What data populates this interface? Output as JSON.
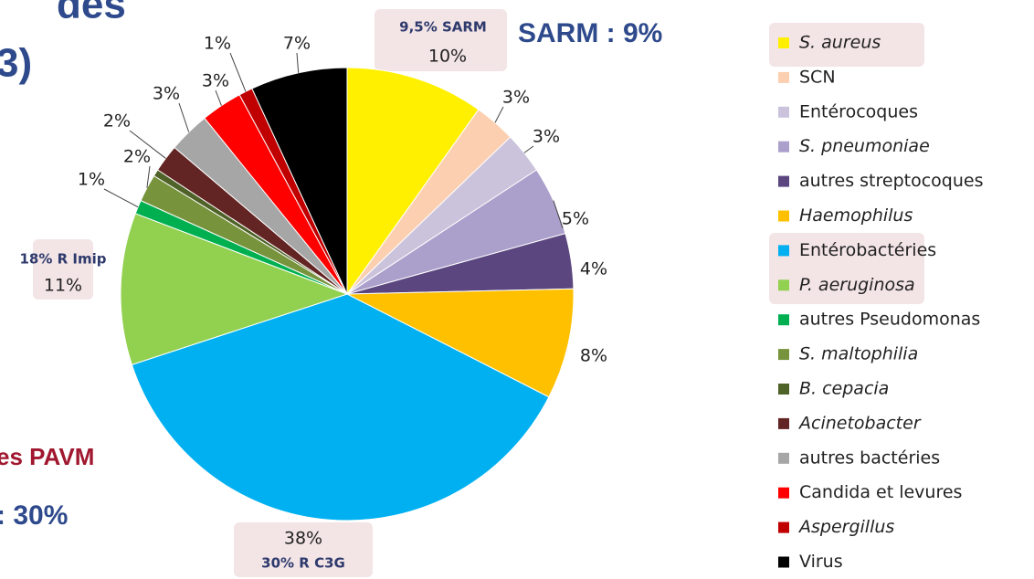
{
  "chart_data": {
    "type": "pie",
    "categories": [
      "S. aureus",
      "SCN",
      "Entérocoques",
      "S. pneumoniae",
      "autres streptocoques",
      "Haemophilus",
      "Entérobactéries",
      "P. aeruginosa",
      "autres Pseudomonas",
      "S. maltophilia",
      "B. cepacia",
      "Acinetobacter",
      "autres bactéries",
      "Candida et levures",
      "Aspergillus",
      "Virus"
    ],
    "values": [
      10,
      3,
      3,
      5,
      4,
      8,
      38,
      11,
      1,
      2,
      0.5,
      2,
      3,
      3,
      1,
      7
    ],
    "value_labels": [
      "10%",
      "3%",
      "3%",
      "5%",
      "4%",
      "8%",
      "38%",
      "11%",
      "1%",
      "2%",
      null,
      "2%",
      "3%",
      "3%",
      "1%",
      "7%"
    ],
    "colors": [
      "#fff000",
      "#fbcfb0",
      "#cbc3dc",
      "#ab9fcb",
      "#5b467f",
      "#ffc000",
      "#00b0f0",
      "#92d050",
      "#00b050",
      "#77933c",
      "#4f6228",
      "#632523",
      "#a6a6a6",
      "#ff0000",
      "#c00000",
      "#000000"
    ],
    "italic": [
      true,
      false,
      false,
      true,
      false,
      true,
      false,
      true,
      false,
      true,
      true,
      true,
      false,
      false,
      true,
      false
    ],
    "annotations": {
      "sarm_detail": "9,5% SARM",
      "sarm_total": "SARM : 9%",
      "imip": "18% R Imip",
      "c3g": "30% R C3G"
    }
  },
  "slide": {
    "title_fragment": "des",
    "title_end": "3)",
    "pavm": "es PAVM",
    "pavm_value": ": 30%"
  }
}
